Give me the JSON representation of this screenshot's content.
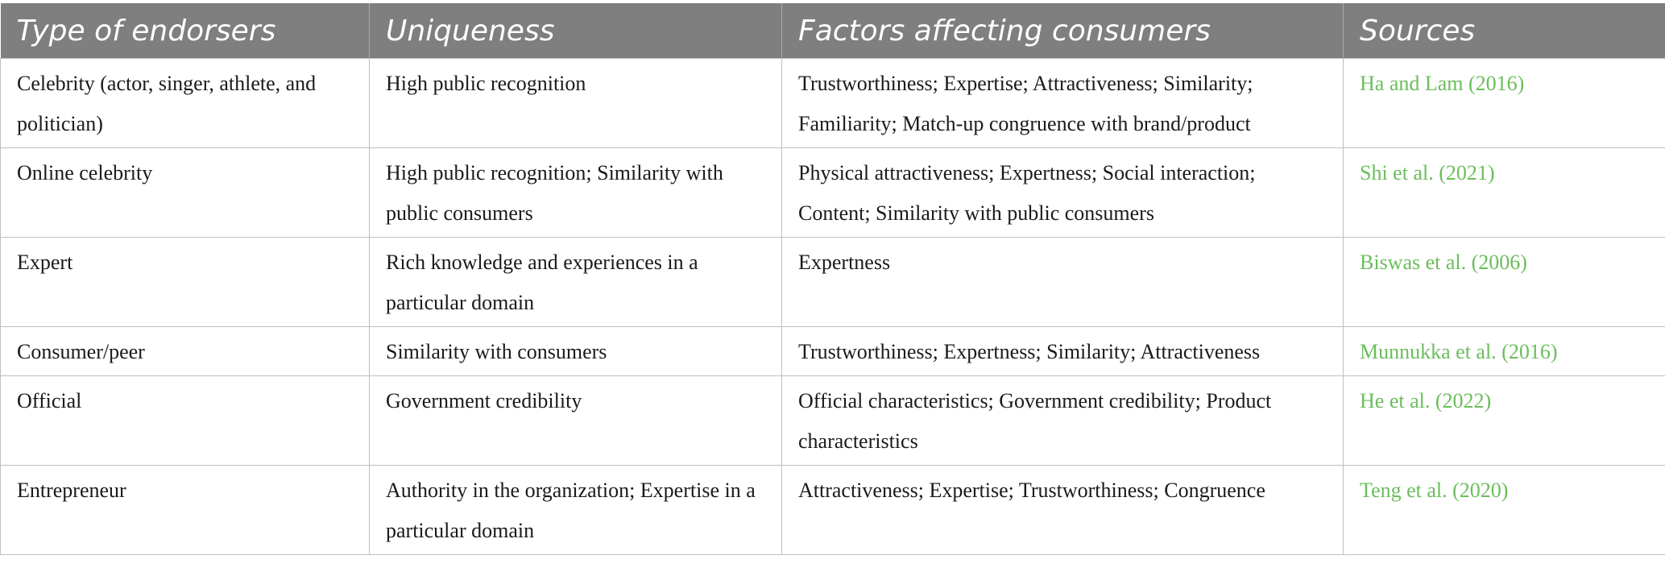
{
  "table": {
    "headers": [
      "Type of endorsers",
      "Uniqueness",
      "Factors affecting consumers",
      "Sources"
    ],
    "rows": [
      {
        "type": "Celebrity (actor, singer, athlete, and politician)",
        "uniqueness": "High public recognition",
        "factors": "Trustworthiness; Expertise; Attractiveness; Similarity; Familiarity; Match-up congruence with brand/product",
        "source": "Ha and Lam (2016)"
      },
      {
        "type": "Online celebrity",
        "uniqueness": "High public recognition; Similarity with public consumers",
        "factors": "Physical attractiveness; Expertness; Social interaction; Content; Similarity with public consumers",
        "source": "Shi et al. (2021)"
      },
      {
        "type": "Expert",
        "uniqueness": "Rich knowledge and experiences in a particular domain",
        "factors": "Expertness",
        "source": "Biswas et al. (2006)"
      },
      {
        "type": "Consumer/peer",
        "uniqueness": "Similarity with consumers",
        "factors": "Trustworthiness; Expertness; Similarity; Attractiveness",
        "source": "Munnukka et al. (2016)"
      },
      {
        "type": "Official",
        "uniqueness": "Government credibility",
        "factors": "Official characteristics; Government credibility; Product characteristics",
        "source": "He et al. (2022)"
      },
      {
        "type": "Entrepreneur",
        "uniqueness": "Authority in the organization; Expertise in a particular domain",
        "factors": "Attractiveness; Expertise; Trustworthiness; Congruence",
        "source": "Teng et al. (2020)"
      }
    ]
  },
  "colors": {
    "header_bg": "#7f7f7f",
    "header_text": "#ffffff",
    "source_link": "#6bbd5b",
    "border": "#bfbfbf"
  }
}
